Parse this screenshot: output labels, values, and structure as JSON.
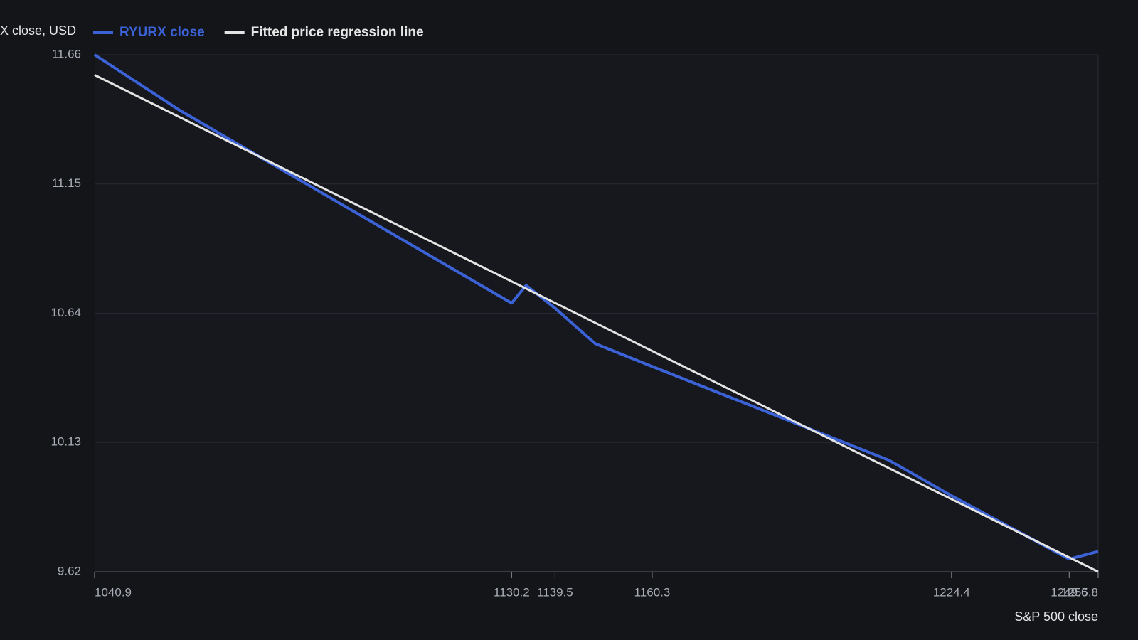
{
  "chart_data": {
    "type": "line",
    "y_label": "X close, USD",
    "x_label": "S&P 500 close",
    "xlim": [
      1040.9,
      1255.8
    ],
    "xticks": [
      1040.9,
      1130.2,
      1139.5,
      1160.3,
      1224.4,
      1249.6,
      1255.8
    ],
    "ylim": [
      9.62,
      11.66
    ],
    "yticks": [
      9.62,
      10.13,
      10.64,
      11.15,
      11.66
    ],
    "grid": true,
    "series": [
      {
        "name": "RYURX close",
        "color": "#3b62d6",
        "x": [
          1040.9,
          1059.2,
          1130.2,
          1133.3,
          1139.5,
          1148.1,
          1160.3,
          1211.0,
          1224.4,
          1249.6,
          1255.8
        ],
        "values": [
          11.66,
          11.44,
          10.68,
          10.75,
          10.66,
          10.52,
          10.43,
          10.06,
          9.92,
          9.67,
          9.7
        ]
      },
      {
        "name": "Fitted price regression line",
        "color": "#e4e4e4",
        "x": [
          1040.9,
          1255.8
        ],
        "values": [
          11.58,
          9.62
        ]
      }
    ]
  }
}
